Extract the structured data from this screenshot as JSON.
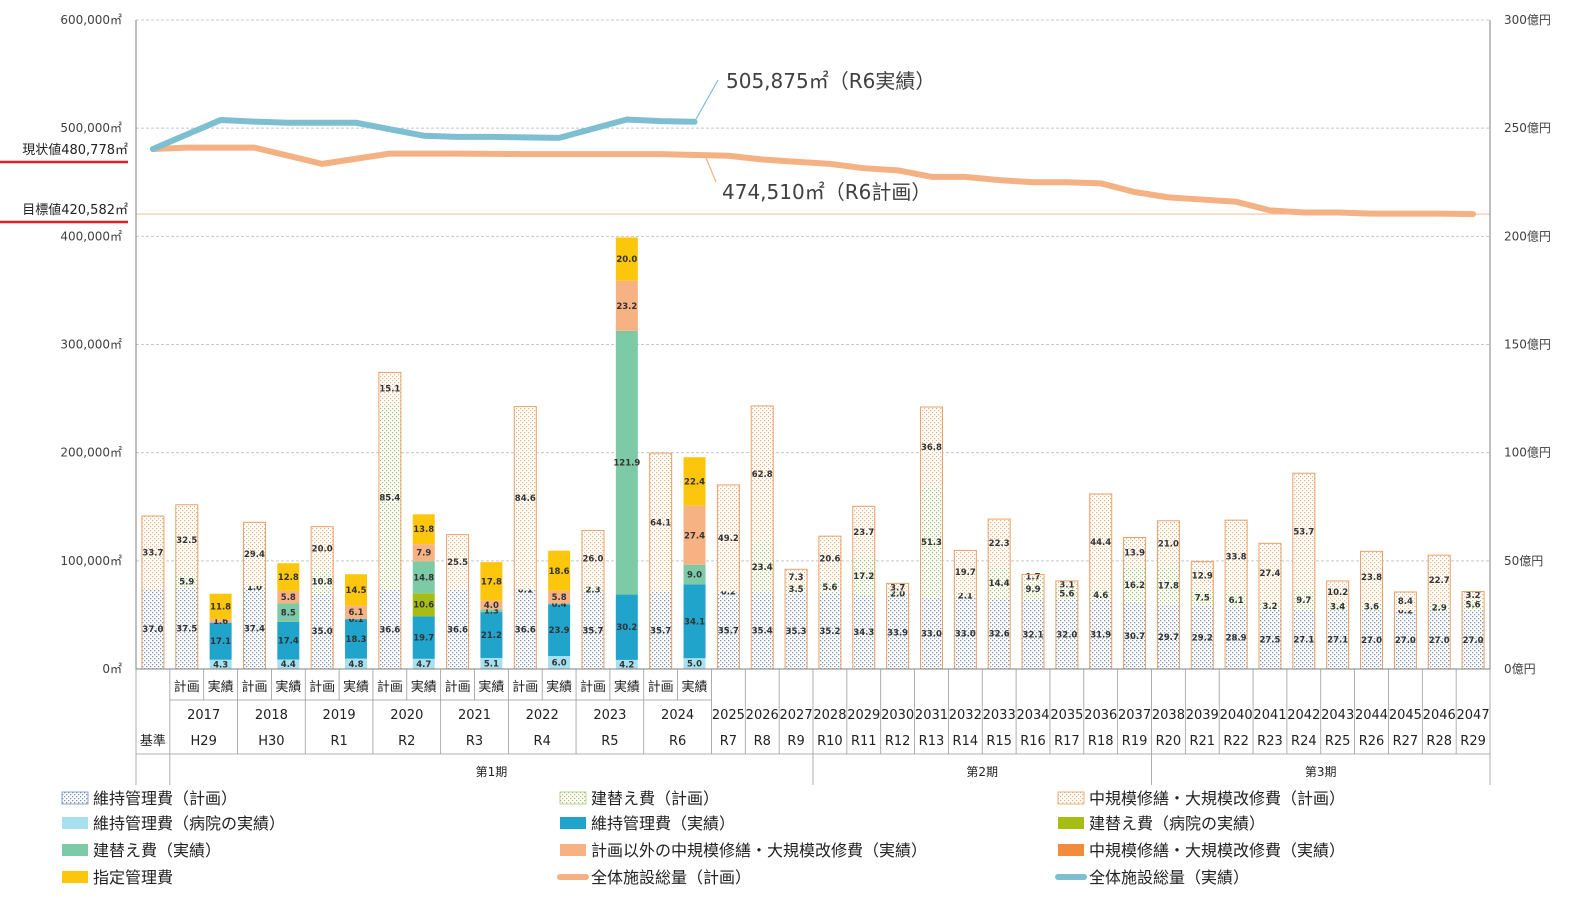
{
  "chart_data": {
    "type": "bar",
    "left_axis": {
      "ylim": [
        0,
        600000
      ],
      "ticks": [
        "0㎡",
        "100,000㎡",
        "200,000㎡",
        "300,000㎡",
        "400,000㎡",
        "500,000㎡",
        "600,000㎡"
      ]
    },
    "right_axis": {
      "ylim": [
        0,
        300
      ],
      "ticks": [
        "0億円",
        "50億円",
        "100億円",
        "150億円",
        "200億円",
        "250億円",
        "300億円"
      ]
    },
    "reference_lines": [
      {
        "label": "現状値480,778㎡",
        "value": 480778,
        "color": "#e02020"
      },
      {
        "label": "目標値420,582㎡",
        "value": 420582,
        "color": "#e02020"
      }
    ],
    "callouts": [
      {
        "text": "505,875㎡（R6実績）",
        "series": "total_actual"
      },
      {
        "text": "474,510㎡（R6計画）",
        "series": "total_plan"
      }
    ],
    "legend": [
      {
        "key": "mp",
        "label": "維持管理費（計画）"
      },
      {
        "key": "rp",
        "label": "建替え費（計画）"
      },
      {
        "key": "cp",
        "label": "中規模修繕・大規模改修費（計画）"
      },
      {
        "key": "hm",
        "label": "維持管理費（病院の実績）"
      },
      {
        "key": "ma",
        "label": "維持管理費（実績）"
      },
      {
        "key": "hr",
        "label": "建替え費（病院の実績）"
      },
      {
        "key": "ra",
        "label": "建替え費（実績）"
      },
      {
        "key": "ou",
        "label": "計画以外の中規模修繕・大規模改修費（実績）"
      },
      {
        "key": "ca",
        "label": "中規模修繕・大規模改修費（実績）"
      },
      {
        "key": "dm",
        "label": "指定管理費"
      },
      {
        "key": "tp",
        "label": "全体施設総量（計画）"
      },
      {
        "key": "ta",
        "label": "全体施設総量（実績）"
      }
    ],
    "series_colors": {
      "mp": "#c5d3e8",
      "rp": "#e2ecc8",
      "cp": "#fbe3cf",
      "hm": "#a7e0ee",
      "ma": "#21a4cc",
      "hr": "#a6bd14",
      "ra": "#7dcaa6",
      "ou": "#f7b284",
      "ca": "#f38b3c",
      "dm": "#fcc60c",
      "tp": "#f4b183",
      "ta": "#7dbfd0"
    },
    "slots": [
      {
        "sub": "",
        "year": "",
        "era": "基準",
        "segs": [
          [
            "mp",
            37.0,
            "37.0"
          ],
          [
            "cp",
            33.7,
            "33.7"
          ]
        ]
      },
      {
        "sub": "計画",
        "year": "2017",
        "era": "H29",
        "segs": [
          [
            "mp",
            37.5,
            "37.5"
          ],
          [
            "rp",
            5.9,
            "5.9"
          ],
          [
            "cp",
            32.5,
            "32.5"
          ]
        ]
      },
      {
        "sub": "実績",
        "year": "",
        "era": "",
        "segs": [
          [
            "hm",
            4.3,
            "4.3"
          ],
          [
            "ma",
            17.1,
            "17.1"
          ],
          [
            "ou",
            1.6,
            "1.6"
          ],
          [
            "dm",
            11.8,
            "11.8"
          ]
        ]
      },
      {
        "sub": "計画",
        "year": "2018",
        "era": "H30",
        "segs": [
          [
            "mp",
            37.4,
            "37.4"
          ],
          [
            "rp",
            1.0,
            "1.0"
          ],
          [
            "cp",
            29.4,
            "29.4"
          ]
        ]
      },
      {
        "sub": "実績",
        "year": "",
        "era": "",
        "segs": [
          [
            "hm",
            4.4,
            "4.4"
          ],
          [
            "ma",
            17.4,
            "17.4"
          ],
          [
            "ra",
            8.5,
            "8.5"
          ],
          [
            "ou",
            5.8,
            "5.8"
          ],
          [
            "dm",
            12.8,
            "12.8"
          ]
        ]
      },
      {
        "sub": "計画",
        "year": "2019",
        "era": "R1",
        "segs": [
          [
            "mp",
            35.0,
            "35.0"
          ],
          [
            "rp",
            10.8,
            "10.8"
          ],
          [
            "cp",
            20.0,
            "20.0"
          ]
        ]
      },
      {
        "sub": "実績",
        "year": "",
        "era": "",
        "segs": [
          [
            "hm",
            4.8,
            "4.8"
          ],
          [
            "ma",
            18.3,
            "18.3"
          ],
          [
            "ra",
            0.1,
            "0.1"
          ],
          [
            "ou",
            6.1,
            "6.1"
          ],
          [
            "dm",
            14.5,
            "14.5"
          ]
        ]
      },
      {
        "sub": "計画",
        "year": "2020",
        "era": "R2",
        "segs": [
          [
            "mp",
            36.6,
            "36.6"
          ],
          [
            "rp",
            85.4,
            "85.4"
          ],
          [
            "cp",
            15.1,
            "15.1"
          ]
        ]
      },
      {
        "sub": "実績",
        "year": "",
        "era": "",
        "segs": [
          [
            "hm",
            4.7,
            "4.7"
          ],
          [
            "ma",
            19.7,
            "19.7"
          ],
          [
            "hr",
            10.6,
            "10.6"
          ],
          [
            "ra",
            14.8,
            "14.8"
          ],
          [
            "ou",
            7.9,
            "7.9"
          ],
          [
            "dm",
            13.8,
            "13.8"
          ]
        ]
      },
      {
        "sub": "計画",
        "year": "2021",
        "era": "R3",
        "segs": [
          [
            "mp",
            36.6,
            "36.6"
          ],
          [
            "cp",
            25.5,
            "25.5"
          ]
        ]
      },
      {
        "sub": "実績",
        "year": "",
        "era": "",
        "segs": [
          [
            "hm",
            5.1,
            "5.1"
          ],
          [
            "ma",
            21.2,
            "21.2"
          ],
          [
            "ra",
            1.3,
            "1.3"
          ],
          [
            "ou",
            4.0,
            "4.0"
          ],
          [
            "dm",
            17.8,
            "17.8"
          ]
        ]
      },
      {
        "sub": "計画",
        "year": "2022",
        "era": "R4",
        "segs": [
          [
            "mp",
            36.6,
            "36.6"
          ],
          [
            "rp",
            0.1,
            "0.1"
          ],
          [
            "cp",
            84.6,
            "84.6"
          ]
        ]
      },
      {
        "sub": "実績",
        "year": "",
        "era": "",
        "segs": [
          [
            "hm",
            6.0,
            "6.0"
          ],
          [
            "ma",
            23.9,
            "23.9"
          ],
          [
            "ra",
            0.4,
            "0.4"
          ],
          [
            "ou",
            5.8,
            "5.8"
          ],
          [
            "dm",
            18.6,
            "18.6"
          ]
        ]
      },
      {
        "sub": "計画",
        "year": "2023",
        "era": "R5",
        "segs": [
          [
            "mp",
            35.7,
            "35.7"
          ],
          [
            "rp",
            2.3,
            "2.3"
          ],
          [
            "cp",
            26.0,
            "26.0"
          ]
        ]
      },
      {
        "sub": "実績",
        "year": "",
        "era": "",
        "segs": [
          [
            "hm",
            4.2,
            "4.2"
          ],
          [
            "ma",
            30.2,
            "30.2"
          ],
          [
            "ra",
            121.9,
            "121.9"
          ],
          [
            "ou",
            23.2,
            "23.2"
          ],
          [
            "dm",
            20.0,
            "20.0"
          ]
        ]
      },
      {
        "sub": "計画",
        "year": "2024",
        "era": "R6",
        "segs": [
          [
            "mp",
            35.7,
            "35.7"
          ],
          [
            "cp",
            64.1,
            "64.1"
          ]
        ]
      },
      {
        "sub": "実績",
        "year": "",
        "era": "",
        "segs": [
          [
            "hm",
            5.0,
            "5.0"
          ],
          [
            "ma",
            34.1,
            "34.1"
          ],
          [
            "ra",
            9.0,
            "9.0"
          ],
          [
            "ou",
            27.4,
            "27.4"
          ],
          [
            "dm",
            22.4,
            "22.4"
          ]
        ]
      },
      {
        "sub": "",
        "year": "2025",
        "era": "R7",
        "segs": [
          [
            "mp",
            35.7,
            "35.7"
          ],
          [
            "rp",
            0.2,
            "0.2"
          ],
          [
            "cp",
            49.2,
            "49.2"
          ]
        ]
      },
      {
        "sub": "",
        "year": "2026",
        "era": "R8",
        "segs": [
          [
            "mp",
            35.4,
            "35.4"
          ],
          [
            "rp",
            23.4,
            "23.4"
          ],
          [
            "cp",
            62.8,
            "62.8"
          ]
        ]
      },
      {
        "sub": "",
        "year": "2027",
        "era": "R9",
        "segs": [
          [
            "mp",
            35.3,
            "35.3"
          ],
          [
            "rp",
            3.5,
            "3.5"
          ],
          [
            "cp",
            7.3,
            "7.3"
          ]
        ]
      },
      {
        "sub": "",
        "year": "2028",
        "era": "R10",
        "segs": [
          [
            "mp",
            35.2,
            "35.2"
          ],
          [
            "rp",
            5.6,
            "5.6"
          ],
          [
            "cp",
            20.6,
            "20.6"
          ]
        ]
      },
      {
        "sub": "",
        "year": "2029",
        "era": "R11",
        "segs": [
          [
            "mp",
            34.3,
            "34.3"
          ],
          [
            "rp",
            17.2,
            "17.2"
          ],
          [
            "cp",
            23.7,
            "23.7"
          ]
        ]
      },
      {
        "sub": "",
        "year": "2030",
        "era": "R12",
        "segs": [
          [
            "mp",
            33.9,
            "33.9"
          ],
          [
            "rp",
            2.0,
            "2.0"
          ],
          [
            "cp",
            3.7,
            "3.7"
          ]
        ]
      },
      {
        "sub": "",
        "year": "2031",
        "era": "R13",
        "segs": [
          [
            "mp",
            33.0,
            "33.0"
          ],
          [
            "rp",
            51.3,
            "51.3"
          ],
          [
            "cp",
            36.8,
            "36.8"
          ]
        ]
      },
      {
        "sub": "",
        "year": "2032",
        "era": "R14",
        "segs": [
          [
            "mp",
            33.0,
            "33.0"
          ],
          [
            "rp",
            2.1,
            "2.1"
          ],
          [
            "cp",
            19.7,
            "19.7"
          ]
        ]
      },
      {
        "sub": "",
        "year": "2033",
        "era": "R15",
        "segs": [
          [
            "mp",
            32.6,
            "32.6"
          ],
          [
            "rp",
            14.4,
            "14.4"
          ],
          [
            "cp",
            22.3,
            "22.3"
          ]
        ]
      },
      {
        "sub": "",
        "year": "2034",
        "era": "R16",
        "segs": [
          [
            "mp",
            32.1,
            "32.1"
          ],
          [
            "rp",
            9.9,
            "9.9"
          ],
          [
            "cp",
            1.7,
            "1.7"
          ]
        ]
      },
      {
        "sub": "",
        "year": "2035",
        "era": "R17",
        "segs": [
          [
            "mp",
            32.0,
            "32.0"
          ],
          [
            "rp",
            5.6,
            "5.6"
          ],
          [
            "cp",
            3.1,
            "3.1"
          ]
        ]
      },
      {
        "sub": "",
        "year": "2036",
        "era": "R18",
        "segs": [
          [
            "mp",
            31.9,
            "31.9"
          ],
          [
            "rp",
            4.6,
            "4.6"
          ],
          [
            "cp",
            44.4,
            "44.4"
          ]
        ]
      },
      {
        "sub": "",
        "year": "2037",
        "era": "R19",
        "segs": [
          [
            "mp",
            30.7,
            "30.7"
          ],
          [
            "rp",
            16.2,
            "16.2"
          ],
          [
            "cp",
            13.9,
            "13.9"
          ]
        ]
      },
      {
        "sub": "",
        "year": "2038",
        "era": "R20",
        "segs": [
          [
            "mp",
            29.7,
            "29.7"
          ],
          [
            "rp",
            17.8,
            "17.8"
          ],
          [
            "cp",
            21.0,
            "21.0"
          ]
        ]
      },
      {
        "sub": "",
        "year": "2039",
        "era": "R21",
        "segs": [
          [
            "mp",
            29.2,
            "29.2"
          ],
          [
            "rp",
            7.5,
            "7.5"
          ],
          [
            "cp",
            12.9,
            "12.9"
          ]
        ]
      },
      {
        "sub": "",
        "year": "2040",
        "era": "R22",
        "segs": [
          [
            "mp",
            28.9,
            "28.9"
          ],
          [
            "rp",
            6.1,
            "6.1"
          ],
          [
            "cp",
            33.8,
            "33.8"
          ]
        ]
      },
      {
        "sub": "",
        "year": "2041",
        "era": "R23",
        "segs": [
          [
            "mp",
            27.5,
            "27.5"
          ],
          [
            "rp",
            3.2,
            "3.2"
          ],
          [
            "cp",
            27.4,
            "27.4"
          ]
        ]
      },
      {
        "sub": "",
        "year": "2042",
        "era": "R24",
        "segs": [
          [
            "mp",
            27.1,
            "27.1"
          ],
          [
            "rp",
            9.7,
            "9.7"
          ],
          [
            "cp",
            53.7,
            "53.7"
          ]
        ]
      },
      {
        "sub": "",
        "year": "2043",
        "era": "R25",
        "segs": [
          [
            "mp",
            27.1,
            "27.1"
          ],
          [
            "rp",
            3.4,
            "3.4"
          ],
          [
            "cp",
            10.2,
            "10.2"
          ]
        ]
      },
      {
        "sub": "",
        "year": "2044",
        "era": "R26",
        "segs": [
          [
            "mp",
            27.0,
            "27.0"
          ],
          [
            "rp",
            3.6,
            "3.6"
          ],
          [
            "cp",
            23.8,
            "23.8"
          ]
        ]
      },
      {
        "sub": "",
        "year": "2045",
        "era": "R27",
        "segs": [
          [
            "mp",
            27.0,
            "27.0"
          ],
          [
            "rp",
            0.2,
            "0.2"
          ],
          [
            "cp",
            8.4,
            "8.4"
          ]
        ]
      },
      {
        "sub": "",
        "year": "2046",
        "era": "R28",
        "segs": [
          [
            "mp",
            27.0,
            "27.0"
          ],
          [
            "rp",
            2.9,
            "2.9"
          ],
          [
            "cp",
            22.7,
            "22.7"
          ]
        ]
      },
      {
        "sub": "",
        "year": "2047",
        "era": "R29",
        "segs": [
          [
            "mp",
            27.0,
            "27.0"
          ],
          [
            "rp",
            5.6,
            "5.6"
          ],
          [
            "cp",
            3.2,
            "3.2"
          ]
        ]
      }
    ],
    "periods": [
      {
        "label": "第1期",
        "from_slot": 1,
        "to_slot": 19
      },
      {
        "label": "第2期",
        "from_slot": 20,
        "to_slot": 29
      },
      {
        "label": "第3期",
        "from_slot": 30,
        "to_slot": 39
      }
    ],
    "total_plan": {
      "name": "全体施設総量（計画）",
      "points": [
        [
          0,
          480778
        ],
        [
          1,
          482000
        ],
        [
          3,
          482000
        ],
        [
          5,
          467000
        ],
        [
          7,
          476500
        ],
        [
          9,
          476500
        ],
        [
          11,
          476000
        ],
        [
          13,
          476000
        ],
        [
          15,
          476000
        ],
        [
          17,
          474500
        ],
        [
          18,
          471000
        ],
        [
          19,
          469000
        ],
        [
          20,
          467000
        ],
        [
          21,
          463000
        ],
        [
          22,
          461000
        ],
        [
          23,
          455000
        ],
        [
          24,
          455000
        ],
        [
          25,
          452000
        ],
        [
          26,
          450000
        ],
        [
          27,
          450000
        ],
        [
          28,
          449000
        ],
        [
          29,
          441000
        ],
        [
          30,
          436000
        ],
        [
          31,
          434000
        ],
        [
          32,
          432000
        ],
        [
          33,
          424000
        ],
        [
          34,
          422000
        ],
        [
          35,
          422000
        ],
        [
          36,
          421000
        ],
        [
          37,
          421000
        ],
        [
          38,
          421000
        ],
        [
          39,
          420582
        ]
      ]
    },
    "total_actual": {
      "name": "全体施設総量（実績）",
      "points": [
        [
          0,
          480778
        ],
        [
          2,
          507500
        ],
        [
          3,
          506000
        ],
        [
          4,
          505000
        ],
        [
          6,
          505000
        ],
        [
          8,
          493000
        ],
        [
          9,
          492000
        ],
        [
          10,
          492000
        ],
        [
          12,
          491000
        ],
        [
          14,
          508000
        ],
        [
          15,
          506500
        ],
        [
          16,
          505875
        ]
      ]
    }
  }
}
